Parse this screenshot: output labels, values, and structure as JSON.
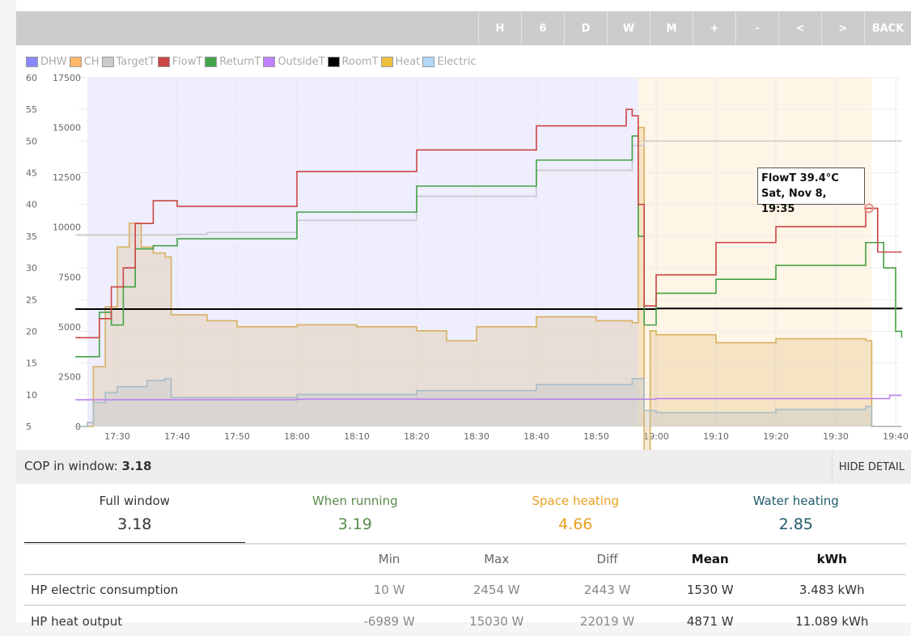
{
  "toolbar": {
    "buttons": [
      "H",
      "6",
      "D",
      "W",
      "M",
      "+",
      "-",
      "<",
      ">",
      "BACK"
    ]
  },
  "legend": [
    {
      "label": "DHW",
      "color": "#8888ff"
    },
    {
      "label": "CH",
      "color": "#ffb868"
    },
    {
      "label": "TargetT",
      "color": "#cccccc"
    },
    {
      "label": "FlowT",
      "color": "#cc4444"
    },
    {
      "label": "ReturnT",
      "color": "#44a44a"
    },
    {
      "label": "OutsideT",
      "color": "#c080ff"
    },
    {
      "label": "RoomT",
      "color": "#000000"
    },
    {
      "label": "Heat",
      "color": "#eec040"
    },
    {
      "label": "Electric",
      "color": "#b0d8f8"
    }
  ],
  "chart_data": {
    "type": "line",
    "x_ticks": [
      "17:30",
      "17:40",
      "17:50",
      "18:00",
      "18:10",
      "18:20",
      "18:30",
      "18:40",
      "18:50",
      "19:00",
      "19:10",
      "19:20",
      "19:30",
      "19:40"
    ],
    "y_left_ticks": [
      5,
      10,
      15,
      20,
      25,
      30,
      35,
      40,
      45,
      50,
      55,
      60
    ],
    "y_right_ticks": [
      0,
      2500,
      5000,
      7500,
      10000,
      12500,
      15000,
      17500
    ],
    "ylim_left": [
      5,
      60
    ],
    "ylim_right": [
      0,
      17500
    ],
    "xlim": [
      "17:23",
      "19:41"
    ],
    "bands": [
      {
        "name": "DHW",
        "start": "17:25",
        "end": "18:57",
        "color": "#eeeeff"
      },
      {
        "name": "CH",
        "start": "18:57",
        "end": "19:36",
        "color": "#fff5e6"
      }
    ],
    "series": [
      {
        "name": "Heat",
        "axis": "right",
        "color": "#d8b060",
        "fill": true,
        "points": [
          [
            "17:23",
            0
          ],
          [
            "17:25",
            0
          ],
          [
            "17:26",
            3000
          ],
          [
            "17:28",
            6000
          ],
          [
            "17:30",
            9000
          ],
          [
            "17:32",
            10200
          ],
          [
            "17:34",
            9000
          ],
          [
            "17:36",
            8700
          ],
          [
            "17:38",
            8500
          ],
          [
            "17:39",
            5600
          ],
          [
            "17:45",
            5300
          ],
          [
            "17:50",
            5000
          ],
          [
            "18:00",
            5100
          ],
          [
            "18:10",
            5000
          ],
          [
            "18:20",
            4800
          ],
          [
            "18:25",
            4300
          ],
          [
            "18:30",
            5000
          ],
          [
            "18:40",
            5500
          ],
          [
            "18:50",
            5300
          ],
          [
            "18:56",
            5200
          ],
          [
            "18:57",
            15000
          ],
          [
            "18:58",
            -2000
          ],
          [
            "18:59",
            4800
          ],
          [
            "19:00",
            4600
          ],
          [
            "19:10",
            4200
          ],
          [
            "19:20",
            4400
          ],
          [
            "19:30",
            4400
          ],
          [
            "19:35",
            4300
          ],
          [
            "19:36",
            0
          ],
          [
            "19:41",
            0
          ]
        ]
      },
      {
        "name": "Electric",
        "axis": "right",
        "color": "#a8bcc8",
        "fill": true,
        "points": [
          [
            "17:23",
            0
          ],
          [
            "17:25",
            200
          ],
          [
            "17:26",
            1200
          ],
          [
            "17:28",
            1700
          ],
          [
            "17:30",
            2000
          ],
          [
            "17:35",
            2300
          ],
          [
            "17:38",
            2400
          ],
          [
            "17:39",
            1450
          ],
          [
            "18:00",
            1600
          ],
          [
            "18:20",
            1800
          ],
          [
            "18:40",
            2100
          ],
          [
            "18:56",
            2400
          ],
          [
            "18:58",
            800
          ],
          [
            "19:00",
            700
          ],
          [
            "19:20",
            850
          ],
          [
            "19:35",
            1000
          ],
          [
            "19:36",
            0
          ],
          [
            "19:41",
            0
          ]
        ]
      },
      {
        "name": "TargetT",
        "axis": "left",
        "color": "#c8c8c8",
        "points": [
          [
            "17:23",
            35.2
          ],
          [
            "17:40",
            35.3
          ],
          [
            "17:45",
            35.6
          ],
          [
            "18:00",
            37.5
          ],
          [
            "18:20",
            41.3
          ],
          [
            "18:40",
            45.4
          ],
          [
            "18:56",
            49.3
          ],
          [
            "18:58",
            50
          ],
          [
            "19:41",
            50
          ]
        ]
      },
      {
        "name": "OutsideT",
        "axis": "left",
        "color": "#b880f0",
        "points": [
          [
            "17:23",
            9.2
          ],
          [
            "18:00",
            9.3
          ],
          [
            "19:00",
            9.4
          ],
          [
            "19:38",
            9.4
          ],
          [
            "19:39",
            9.9
          ],
          [
            "19:41",
            9.9
          ]
        ]
      },
      {
        "name": "RoomT",
        "axis": "left",
        "color": "#000000",
        "points": [
          [
            "17:23",
            23.5
          ],
          [
            "18:00",
            23.5
          ],
          [
            "19:00",
            23.6
          ],
          [
            "19:41",
            23.5
          ]
        ]
      },
      {
        "name": "ReturnT",
        "axis": "left",
        "color": "#44a044",
        "points": [
          [
            "17:23",
            16
          ],
          [
            "17:26",
            16
          ],
          [
            "17:27",
            23
          ],
          [
            "17:29",
            21
          ],
          [
            "17:31",
            27
          ],
          [
            "17:33",
            33
          ],
          [
            "17:36",
            33.5
          ],
          [
            "17:40",
            34.6
          ],
          [
            "18:00",
            38.8
          ],
          [
            "18:20",
            42.9
          ],
          [
            "18:40",
            47
          ],
          [
            "18:56",
            50.8
          ],
          [
            "18:57",
            35
          ],
          [
            "18:58",
            21
          ],
          [
            "19:00",
            26
          ],
          [
            "19:10",
            28.2
          ],
          [
            "19:20",
            30.4
          ],
          [
            "19:35",
            34
          ],
          [
            "19:38",
            30
          ],
          [
            "19:40",
            20
          ],
          [
            "19:41",
            19
          ]
        ]
      },
      {
        "name": "FlowT",
        "axis": "left",
        "color": "#cc4444",
        "points": [
          [
            "17:23",
            19
          ],
          [
            "17:26",
            19
          ],
          [
            "17:27",
            22
          ],
          [
            "17:29",
            27
          ],
          [
            "17:31",
            30
          ],
          [
            "17:33",
            37
          ],
          [
            "17:36",
            40.6
          ],
          [
            "17:40",
            39.7
          ],
          [
            "18:00",
            45.2
          ],
          [
            "18:20",
            48.6
          ],
          [
            "18:40",
            52.4
          ],
          [
            "18:55",
            55
          ],
          [
            "18:56",
            54
          ],
          [
            "18:57",
            40
          ],
          [
            "18:58",
            24
          ],
          [
            "19:00",
            28.9
          ],
          [
            "19:10",
            34
          ],
          [
            "19:20",
            36.5
          ],
          [
            "19:35",
            39.4
          ],
          [
            "19:37",
            32.5
          ],
          [
            "19:41",
            32.5
          ]
        ]
      }
    ]
  },
  "tooltip": {
    "line1": "FlowT 39.4°C",
    "line2": "Sat, Nov 8, 19:35",
    "time": "19:35",
    "value": 39.4
  },
  "cop": {
    "label": "COP in window:",
    "value": "3.18",
    "hide_label": "HIDE DETAIL"
  },
  "stats": [
    {
      "label": "Full window",
      "value": "3.18",
      "color": "#333333"
    },
    {
      "label": "When running",
      "value": "3.19",
      "color": "#5a8a4a"
    },
    {
      "label": "Space heating",
      "value": "4.66",
      "color": "#e8a020"
    },
    {
      "label": "Water heating",
      "value": "2.85",
      "color": "#1e5a6a"
    }
  ],
  "table": {
    "headers": [
      "",
      "Min",
      "Max",
      "Diff",
      "Mean",
      "kWh"
    ],
    "rows": [
      [
        "HP electric consumption",
        "10 W",
        "2454 W",
        "2443 W",
        "1530 W",
        "3.483 kWh"
      ],
      [
        "HP heat output",
        "-6989 W",
        "15030 W",
        "22019 W",
        "4871 W",
        "11.089 kWh"
      ]
    ]
  }
}
